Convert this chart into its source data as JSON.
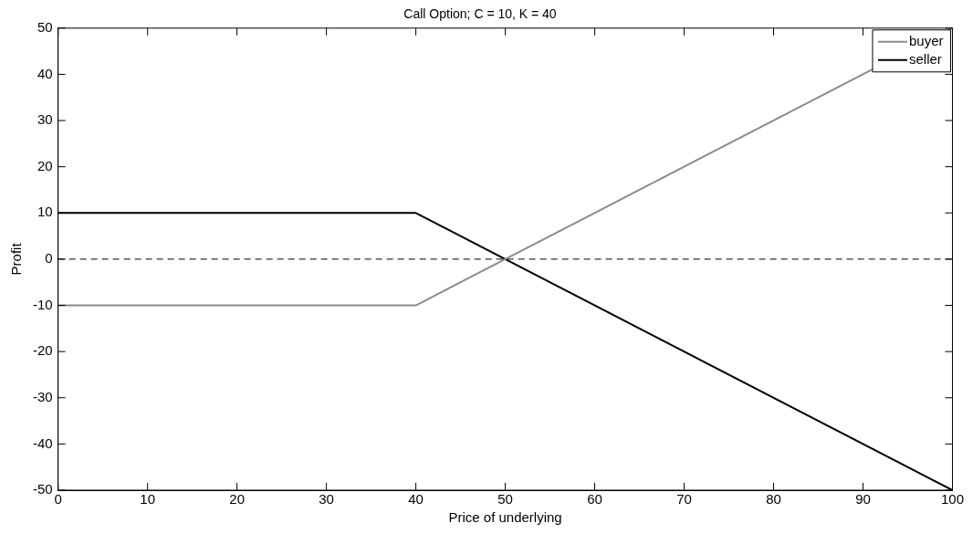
{
  "chart_data": {
    "type": "line",
    "title": "Call Option; C = 10, K = 40",
    "xlabel": "Price of underlying",
    "ylabel": "Profit",
    "x": [
      0,
      40,
      100
    ],
    "series": [
      {
        "name": "buyer",
        "color": "#8c8c8c",
        "values": [
          -10,
          -10,
          50
        ]
      },
      {
        "name": "seller",
        "color": "#000000",
        "values": [
          10,
          10,
          -50
        ]
      }
    ],
    "xlim": [
      0,
      100
    ],
    "xticks": [
      0,
      10,
      20,
      30,
      40,
      50,
      60,
      70,
      80,
      90,
      100
    ],
    "ylim": [
      -50,
      50
    ],
    "yticks": [
      -50,
      -40,
      -30,
      -20,
      -10,
      0,
      10,
      20,
      30,
      40,
      50
    ],
    "ref_lines": [
      {
        "axis": "y",
        "value": 0,
        "color": "#000000",
        "line_style": "dashed"
      }
    ],
    "legend": "top right",
    "marker": "none",
    "line_style": "solid"
  }
}
